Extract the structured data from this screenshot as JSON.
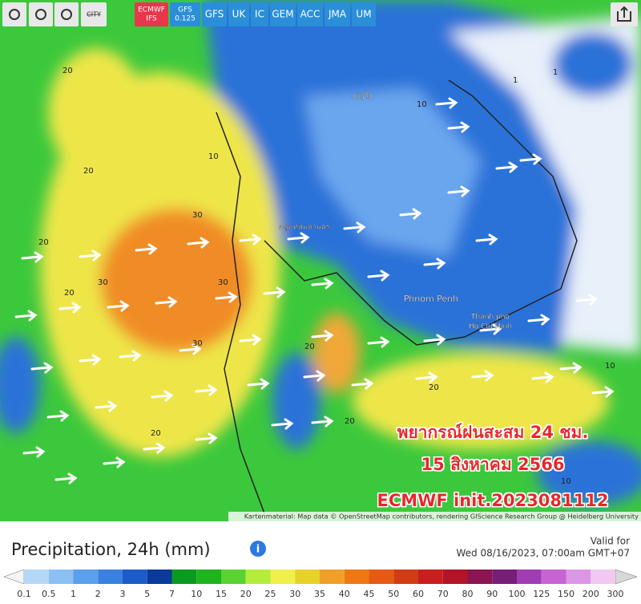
{
  "toolbar": {
    "city": "CITY",
    "models": [
      [
        "ECMWF",
        "IFS"
      ],
      [
        "GFS",
        "0.125"
      ],
      [
        "GFS"
      ],
      [
        "UK"
      ],
      [
        "IC"
      ],
      [
        "GEM"
      ],
      [
        "ACC"
      ],
      [
        "JMA"
      ],
      [
        "UM"
      ]
    ]
  },
  "map": {
    "places": [
      [
        "ວຽງຈັນ"
      ],
      [
        "กรุงเทพมหานคร"
      ],
      [
        "Phnom Penh"
      ],
      [
        "Thành phố",
        "Hồ Chí Minh"
      ]
    ],
    "contour_labels": [
      "20",
      "20",
      "20",
      "20",
      "30",
      "30",
      "30",
      "30",
      "10",
      "10",
      "10",
      "1",
      "1",
      "20",
      "20",
      "20",
      "10",
      "20"
    ],
    "overlay": [
      "พยากรณ์ฝนสะสม 24 ชม.",
      "15 สิงหาคม 2566",
      "ECMWF init.2023081112"
    ],
    "attribution": "Kartenmaterial: Map data © OpenStreetMap contributors, rendering GIScience Research Group @ Heidelberg University"
  },
  "legend": {
    "title": "Precipitation, 24h (mm)",
    "valid_label": "Valid for",
    "valid_time": "Wed 08/16/2023, 07:00am GMT+07",
    "labels": [
      "0.1",
      "0.5",
      "1",
      "2",
      "3",
      "5",
      "7",
      "10",
      "15",
      "20",
      "25",
      "30",
      "35",
      "40",
      "45",
      "50",
      "60",
      "70",
      "80",
      "90",
      "100",
      "125",
      "150",
      "200",
      "300"
    ]
  }
}
